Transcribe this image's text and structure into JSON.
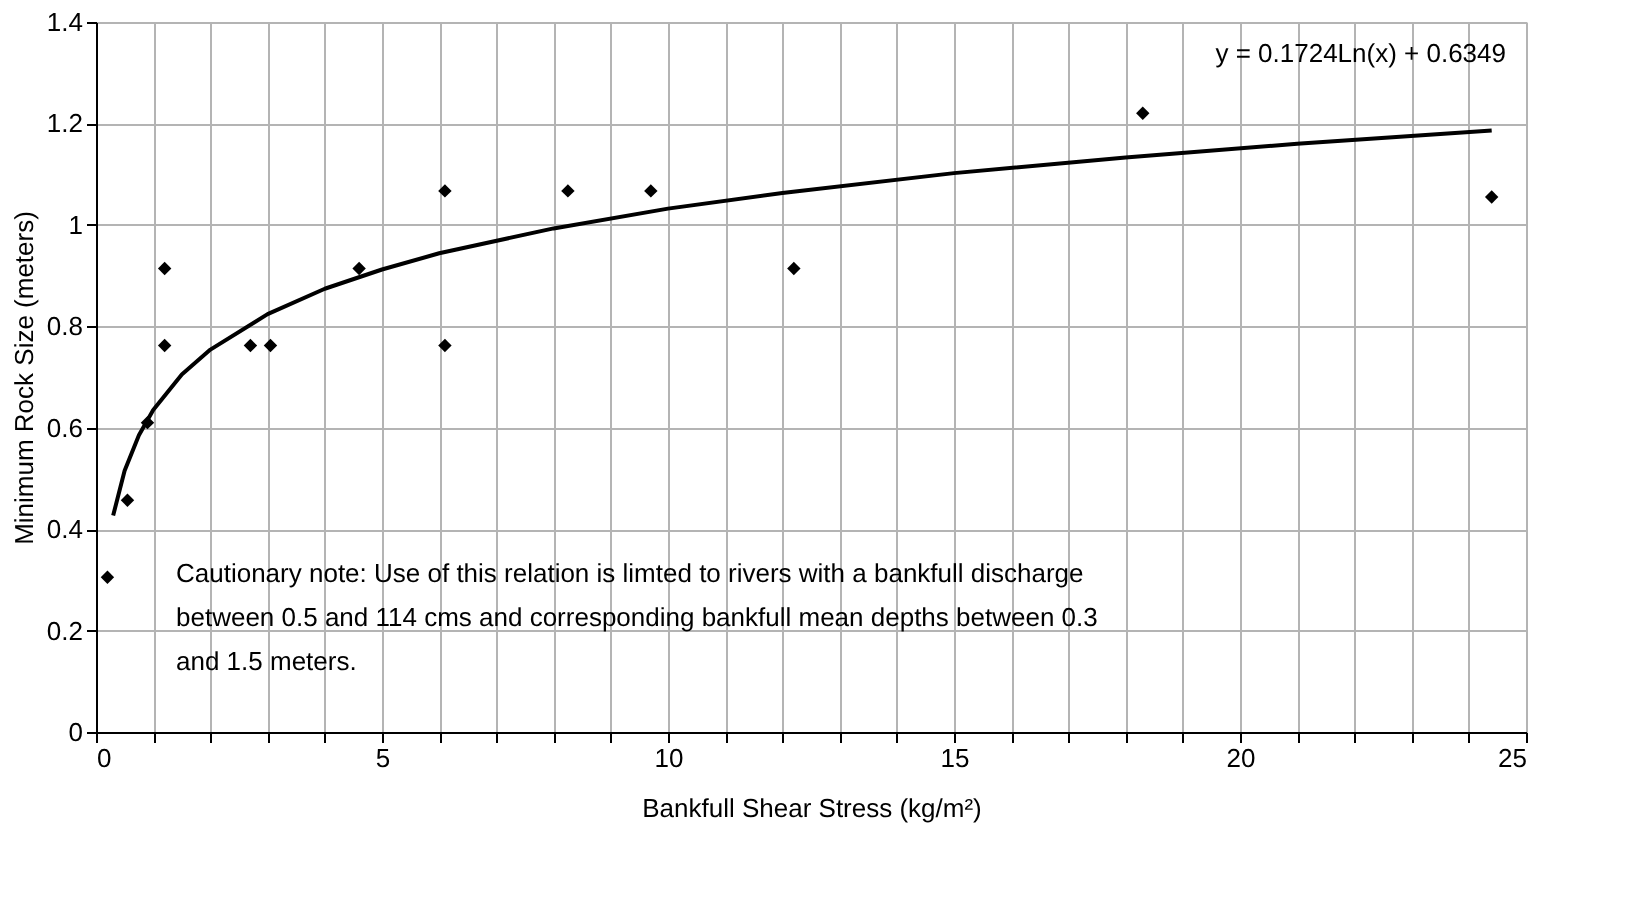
{
  "chart_data": {
    "type": "scatter",
    "xlabel": "Bankfull Shear Stress (kg/m²)",
    "ylabel": "Minimum Rock Size (meters)",
    "xlim": [
      0,
      25
    ],
    "ylim": [
      0,
      1.4
    ],
    "xticks": [
      0,
      {
        "value": 1,
        "label": null
      },
      {
        "value": 2,
        "label": null
      },
      {
        "value": 3,
        "label": null
      },
      {
        "value": 4,
        "label": null
      },
      5,
      {
        "value": 6,
        "label": null
      },
      {
        "value": 7,
        "label": null
      },
      {
        "value": 8,
        "label": null
      },
      {
        "value": 9,
        "label": null
      },
      10,
      {
        "value": 11,
        "label": null
      },
      {
        "value": 12,
        "label": null
      },
      {
        "value": 13,
        "label": null
      },
      {
        "value": 14,
        "label": null
      },
      15,
      {
        "value": 16,
        "label": null
      },
      {
        "value": 17,
        "label": null
      },
      {
        "value": 18,
        "label": null
      },
      {
        "value": 19,
        "label": null
      },
      20,
      {
        "value": 21,
        "label": null
      },
      {
        "value": 22,
        "label": null
      },
      {
        "value": 23,
        "label": null
      },
      {
        "value": 24,
        "label": null
      },
      25
    ],
    "yticks": [
      {
        "value": 0,
        "label": "0"
      },
      0.2,
      0.4,
      0.6,
      0.8,
      {
        "value": 1,
        "label": "1"
      },
      1.2,
      1.4
    ],
    "grid": true,
    "series": [
      {
        "type": "scatter",
        "marker": "diamond",
        "color": "#000000",
        "x": [
          0.2,
          0.55,
          0.9,
          1.2,
          1.2,
          2.7,
          3.05,
          4.6,
          6.1,
          6.1,
          8.25,
          9.7,
          12.2,
          18.3,
          24.4
        ],
        "values": [
          0.305,
          0.457,
          0.61,
          0.914,
          0.762,
          0.762,
          0.762,
          0.914,
          1.067,
          0.762,
          1.067,
          1.067,
          0.914,
          1.22,
          1.055
        ]
      },
      {
        "type": "line",
        "color": "#000000",
        "x": [
          0.3,
          0.5,
          0.75,
          1,
          1.5,
          2,
          3,
          4,
          5,
          6,
          8,
          10,
          12,
          15,
          18,
          21,
          24.4
        ],
        "values": [
          0.427,
          0.515,
          0.585,
          0.635,
          0.705,
          0.754,
          0.824,
          0.874,
          0.912,
          0.944,
          0.993,
          1.032,
          1.063,
          1.102,
          1.133,
          1.16,
          1.186
        ]
      }
    ],
    "annotations": [
      "y = 0.1724Ln(x) + 0.6349",
      "Cautionary note:  Use of this relation is limted to rivers with a bankfull discharge\nbetween 0.5 and 114 cms and corresponding bankfull mean depths between 0.3\nand 1.5 meters."
    ]
  }
}
